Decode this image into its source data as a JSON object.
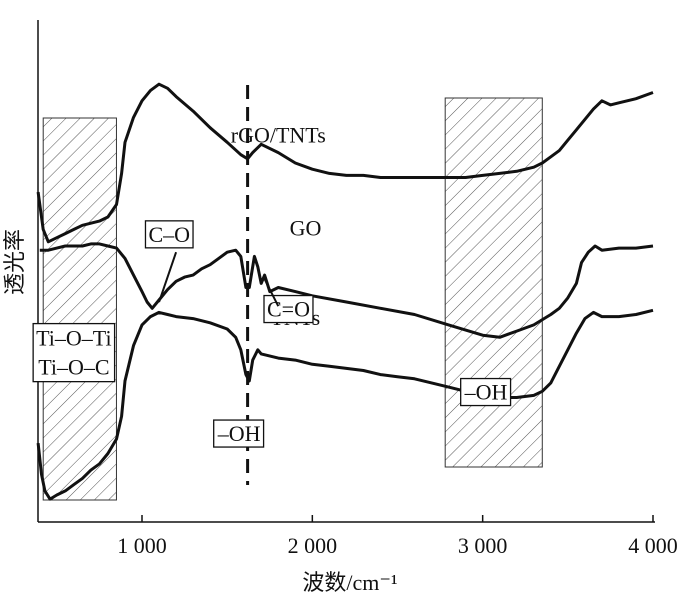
{
  "chart_data": {
    "type": "line",
    "xlabel": "波数/cm⁻¹",
    "ylabel": "透光率",
    "xlim": [
      370,
      4000
    ],
    "x_ticks": [
      {
        "value": 1000,
        "label": "1 000"
      },
      {
        "value": 2000,
        "label": "2 000"
      },
      {
        "value": 3000,
        "label": "3 000"
      },
      {
        "value": 4000,
        "label": "4 000"
      }
    ],
    "grid": false,
    "series": [
      {
        "name": "rGO/TNTs",
        "x": [
          390,
          420,
          450,
          500,
          550,
          600,
          650,
          700,
          750,
          800,
          850,
          880,
          900,
          950,
          1000,
          1050,
          1100,
          1150,
          1200,
          1300,
          1400,
          1500,
          1580,
          1620,
          1650,
          1700,
          1800,
          1900,
          2000,
          2100,
          2200,
          2300,
          2400,
          2500,
          2600,
          2700,
          2800,
          2900,
          3000,
          3100,
          3200,
          3300,
          3350,
          3400,
          3450,
          3500,
          3550,
          3600,
          3650,
          3700,
          3750,
          3800,
          3900,
          4000
        ],
        "y": [
          0.36,
          0.18,
          0.12,
          0.14,
          0.16,
          0.18,
          0.2,
          0.21,
          0.22,
          0.24,
          0.3,
          0.45,
          0.6,
          0.72,
          0.8,
          0.85,
          0.88,
          0.86,
          0.82,
          0.75,
          0.67,
          0.6,
          0.54,
          0.52,
          0.55,
          0.59,
          0.55,
          0.5,
          0.47,
          0.45,
          0.44,
          0.44,
          0.43,
          0.43,
          0.43,
          0.43,
          0.43,
          0.43,
          0.44,
          0.45,
          0.46,
          0.48,
          0.5,
          0.53,
          0.56,
          0.61,
          0.66,
          0.71,
          0.76,
          0.8,
          0.78,
          0.79,
          0.81,
          0.84
        ]
      },
      {
        "name": "GO",
        "x": [
          400,
          450,
          500,
          550,
          600,
          650,
          700,
          750,
          800,
          850,
          900,
          950,
          1000,
          1030,
          1060,
          1100,
          1150,
          1200,
          1250,
          1300,
          1350,
          1400,
          1450,
          1500,
          1550,
          1580,
          1610,
          1630,
          1660,
          1680,
          1700,
          1720,
          1750,
          1800,
          1900,
          2000,
          2200,
          2400,
          2600,
          2800,
          3000,
          3100,
          3200,
          3300,
          3400,
          3450,
          3500,
          3550,
          3580,
          3620,
          3660,
          3700,
          3800,
          3900,
          4000
        ],
        "y": [
          0.08,
          0.08,
          0.09,
          0.1,
          0.1,
          0.1,
          0.11,
          0.11,
          0.1,
          0.09,
          0.04,
          -0.04,
          -0.12,
          -0.17,
          -0.2,
          -0.16,
          -0.11,
          -0.07,
          -0.05,
          -0.04,
          -0.01,
          0.01,
          0.04,
          0.07,
          0.08,
          0.05,
          -0.1,
          -0.1,
          0.05,
          0.0,
          -0.08,
          -0.04,
          -0.12,
          -0.1,
          -0.12,
          -0.14,
          -0.17,
          -0.2,
          -0.23,
          -0.28,
          -0.33,
          -0.34,
          -0.31,
          -0.28,
          -0.23,
          -0.2,
          -0.15,
          -0.08,
          0.02,
          0.07,
          0.1,
          0.08,
          0.09,
          0.09,
          0.1
        ]
      },
      {
        "name": "TNTs",
        "x": [
          390,
          410,
          430,
          460,
          500,
          550,
          600,
          650,
          700,
          750,
          800,
          850,
          880,
          900,
          950,
          1000,
          1050,
          1100,
          1150,
          1200,
          1300,
          1400,
          1500,
          1550,
          1580,
          1610,
          1630,
          1650,
          1680,
          1700,
          1800,
          1900,
          2000,
          2100,
          2200,
          2300,
          2400,
          2500,
          2600,
          2700,
          2800,
          2900,
          3000,
          3100,
          3200,
          3300,
          3350,
          3400,
          3450,
          3500,
          3550,
          3600,
          3650,
          3700,
          3800,
          3900,
          4000
        ],
        "y": [
          -0.85,
          -1.0,
          -1.08,
          -1.12,
          -1.1,
          -1.08,
          -1.05,
          -1.02,
          -0.98,
          -0.95,
          -0.9,
          -0.83,
          -0.72,
          -0.55,
          -0.38,
          -0.28,
          -0.24,
          -0.22,
          -0.23,
          -0.24,
          -0.25,
          -0.27,
          -0.3,
          -0.34,
          -0.4,
          -0.52,
          -0.55,
          -0.45,
          -0.4,
          -0.42,
          -0.44,
          -0.45,
          -0.47,
          -0.48,
          -0.49,
          -0.5,
          -0.52,
          -0.53,
          -0.54,
          -0.56,
          -0.58,
          -0.6,
          -0.62,
          -0.63,
          -0.63,
          -0.62,
          -0.6,
          -0.56,
          -0.48,
          -0.4,
          -0.32,
          -0.25,
          -0.22,
          -0.24,
          -0.24,
          -0.23,
          -0.21
        ]
      }
    ],
    "series_labels": [
      {
        "text": "rGO/TNTs",
        "x": 1800,
        "y": 0.6
      },
      {
        "text": "GO",
        "x": 1960,
        "y": 0.15
      },
      {
        "text": "TNTs",
        "x": 1900,
        "y": -0.28
      }
    ],
    "annotations": [
      {
        "text": "Ti–O–Ti",
        "x": 600,
        "y": -0.38
      },
      {
        "text": "Ti–O–C",
        "x": 600,
        "y": -0.52
      },
      {
        "text": "C–O",
        "x": 1160,
        "y": 0.12
      },
      {
        "text": "C=O",
        "x": 1860,
        "y": -0.24
      },
      {
        "text": "–OH",
        "x": 1570,
        "y": -0.84
      },
      {
        "text": "–OH",
        "x": 3020,
        "y": -0.64
      }
    ],
    "hatched_regions": [
      [
        420,
        850
      ],
      [
        2780,
        3350
      ]
    ],
    "dashed_line_x": 1620,
    "ylim": [
      -1.35,
      1.05
    ]
  }
}
